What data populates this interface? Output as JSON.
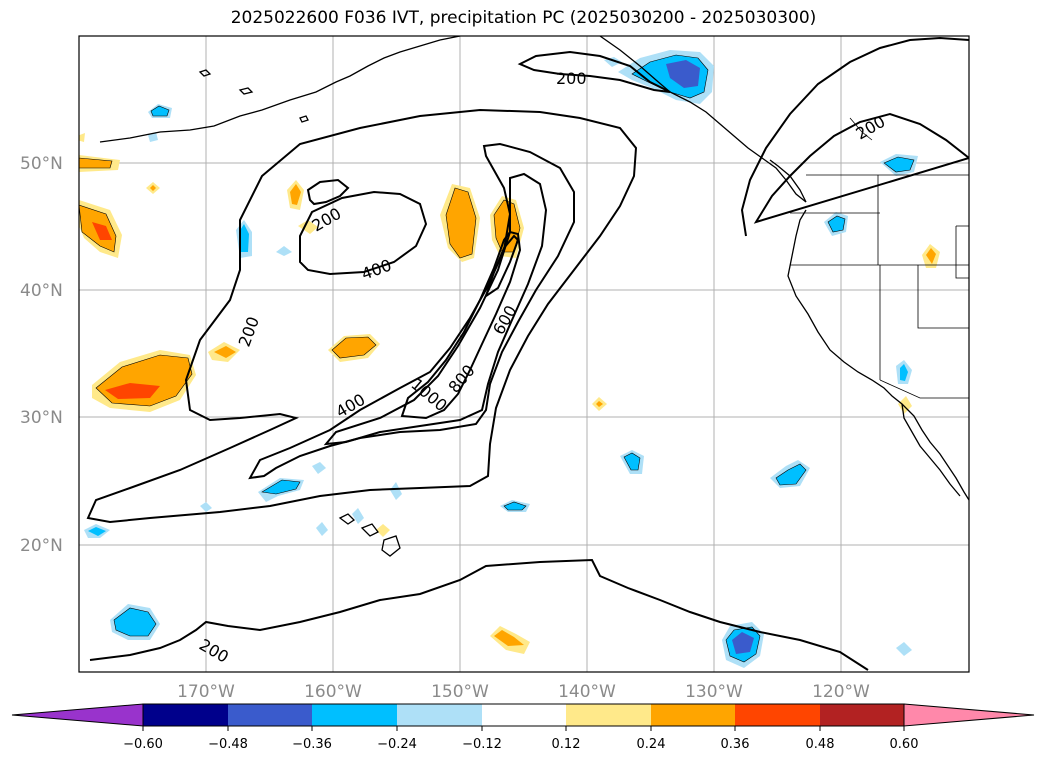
{
  "title": "2025022600 F036 IVT, precipitation PC (2025030200 - 2025030300)",
  "lat_labels": [
    "50°N",
    "40°N",
    "30°N",
    "20°N"
  ],
  "lon_labels": [
    "170°W",
    "160°W",
    "150°W",
    "140°W",
    "130°W",
    "120°W"
  ],
  "contour_labels": [
    "200",
    "200",
    "200",
    "200",
    "200",
    "400",
    "400",
    "600",
    "800",
    "1000"
  ],
  "colorbar": {
    "ticks": [
      "−0.60",
      "−0.48",
      "−0.36",
      "−0.24",
      "−0.12",
      "0.12",
      "0.24",
      "0.36",
      "0.48",
      "0.60"
    ],
    "colors": [
      "#9933cc",
      "#00008b",
      "#3a5bcc",
      "#00bfff",
      "#aee0f7",
      "#ffffff",
      "#ffe98a",
      "#ffa500",
      "#ff4500",
      "#b22222",
      "#ff88aa",
      "#ff88aa"
    ]
  },
  "colors": {
    "neg_light": "#aee0f7",
    "neg_mid": "#00bfff",
    "neg_dark": "#3a5bcc",
    "pos_light": "#ffe98a",
    "pos_mid": "#ffa500",
    "pos_dark": "#ff4500"
  }
}
